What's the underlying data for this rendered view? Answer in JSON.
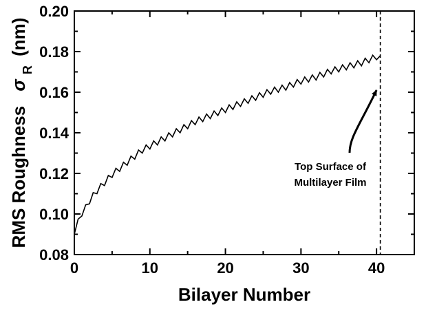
{
  "chart_data": {
    "type": "line",
    "title": "",
    "xlabel": "Bilayer Number",
    "ylabel": "RMS Roughness",
    "ylabel_symbol": "σ",
    "ylabel_subscript": "R",
    "ylabel_unit": "(nm)",
    "xlim": [
      0,
      45
    ],
    "ylim": [
      0.08,
      0.2
    ],
    "x_ticks": [
      0,
      10,
      20,
      30,
      40
    ],
    "x_tick_labels": [
      "0",
      "10",
      "20",
      "30",
      "40"
    ],
    "x_minor_ticks": [
      5,
      15,
      25,
      35,
      45
    ],
    "y_ticks": [
      0.08,
      0.1,
      0.12,
      0.14,
      0.16,
      0.18,
      0.2
    ],
    "y_tick_labels": [
      "0.08",
      "0.10",
      "0.12",
      "0.14",
      "0.16",
      "0.18",
      "0.20"
    ],
    "y_minor_ticks": [
      0.09,
      0.11,
      0.13,
      0.15,
      0.17,
      0.19
    ],
    "grid": false,
    "series": [
      {
        "envelope_low": [
          [
            0,
            0.09
          ],
          [
            1,
            0.099
          ],
          [
            2,
            0.105
          ],
          [
            3,
            0.11
          ],
          [
            4,
            0.114
          ],
          [
            5,
            0.118
          ],
          [
            6,
            0.121
          ],
          [
            7,
            0.124
          ],
          [
            8,
            0.127
          ],
          [
            9,
            0.13
          ],
          [
            10,
            0.132
          ],
          [
            12,
            0.136
          ],
          [
            14,
            0.14
          ],
          [
            16,
            0.144
          ],
          [
            18,
            0.147
          ],
          [
            20,
            0.15
          ],
          [
            22,
            0.153
          ],
          [
            24,
            0.156
          ],
          [
            26,
            0.159
          ],
          [
            28,
            0.161
          ],
          [
            30,
            0.164
          ],
          [
            32,
            0.166
          ],
          [
            34,
            0.169
          ],
          [
            36,
            0.171
          ],
          [
            38,
            0.173
          ],
          [
            40,
            0.176
          ]
        ],
        "envelope_high": [
          [
            0,
            0.094
          ],
          [
            1,
            0.101
          ],
          [
            2,
            0.108
          ],
          [
            3,
            0.113
          ],
          [
            4,
            0.117
          ],
          [
            5,
            0.121
          ],
          [
            6,
            0.124
          ],
          [
            7,
            0.127
          ],
          [
            8,
            0.13
          ],
          [
            9,
            0.133
          ],
          [
            10,
            0.135
          ],
          [
            12,
            0.139
          ],
          [
            14,
            0.143
          ],
          [
            16,
            0.147
          ],
          [
            18,
            0.15
          ],
          [
            20,
            0.153
          ],
          [
            22,
            0.156
          ],
          [
            24,
            0.159
          ],
          [
            26,
            0.162
          ],
          [
            28,
            0.164
          ],
          [
            30,
            0.167
          ],
          [
            32,
            0.169
          ],
          [
            34,
            0.172
          ],
          [
            36,
            0.174
          ],
          [
            38,
            0.176
          ],
          [
            40,
            0.179
          ]
        ],
        "end_x": 40.5,
        "end_y": 0.178
      }
    ],
    "marker_line": {
      "x": 40.5,
      "style": "dashed"
    },
    "annotation": {
      "lines": [
        "Top Surface of",
        "Multilayer Film"
      ],
      "arrow_target": [
        40.0,
        0.161
      ]
    }
  }
}
